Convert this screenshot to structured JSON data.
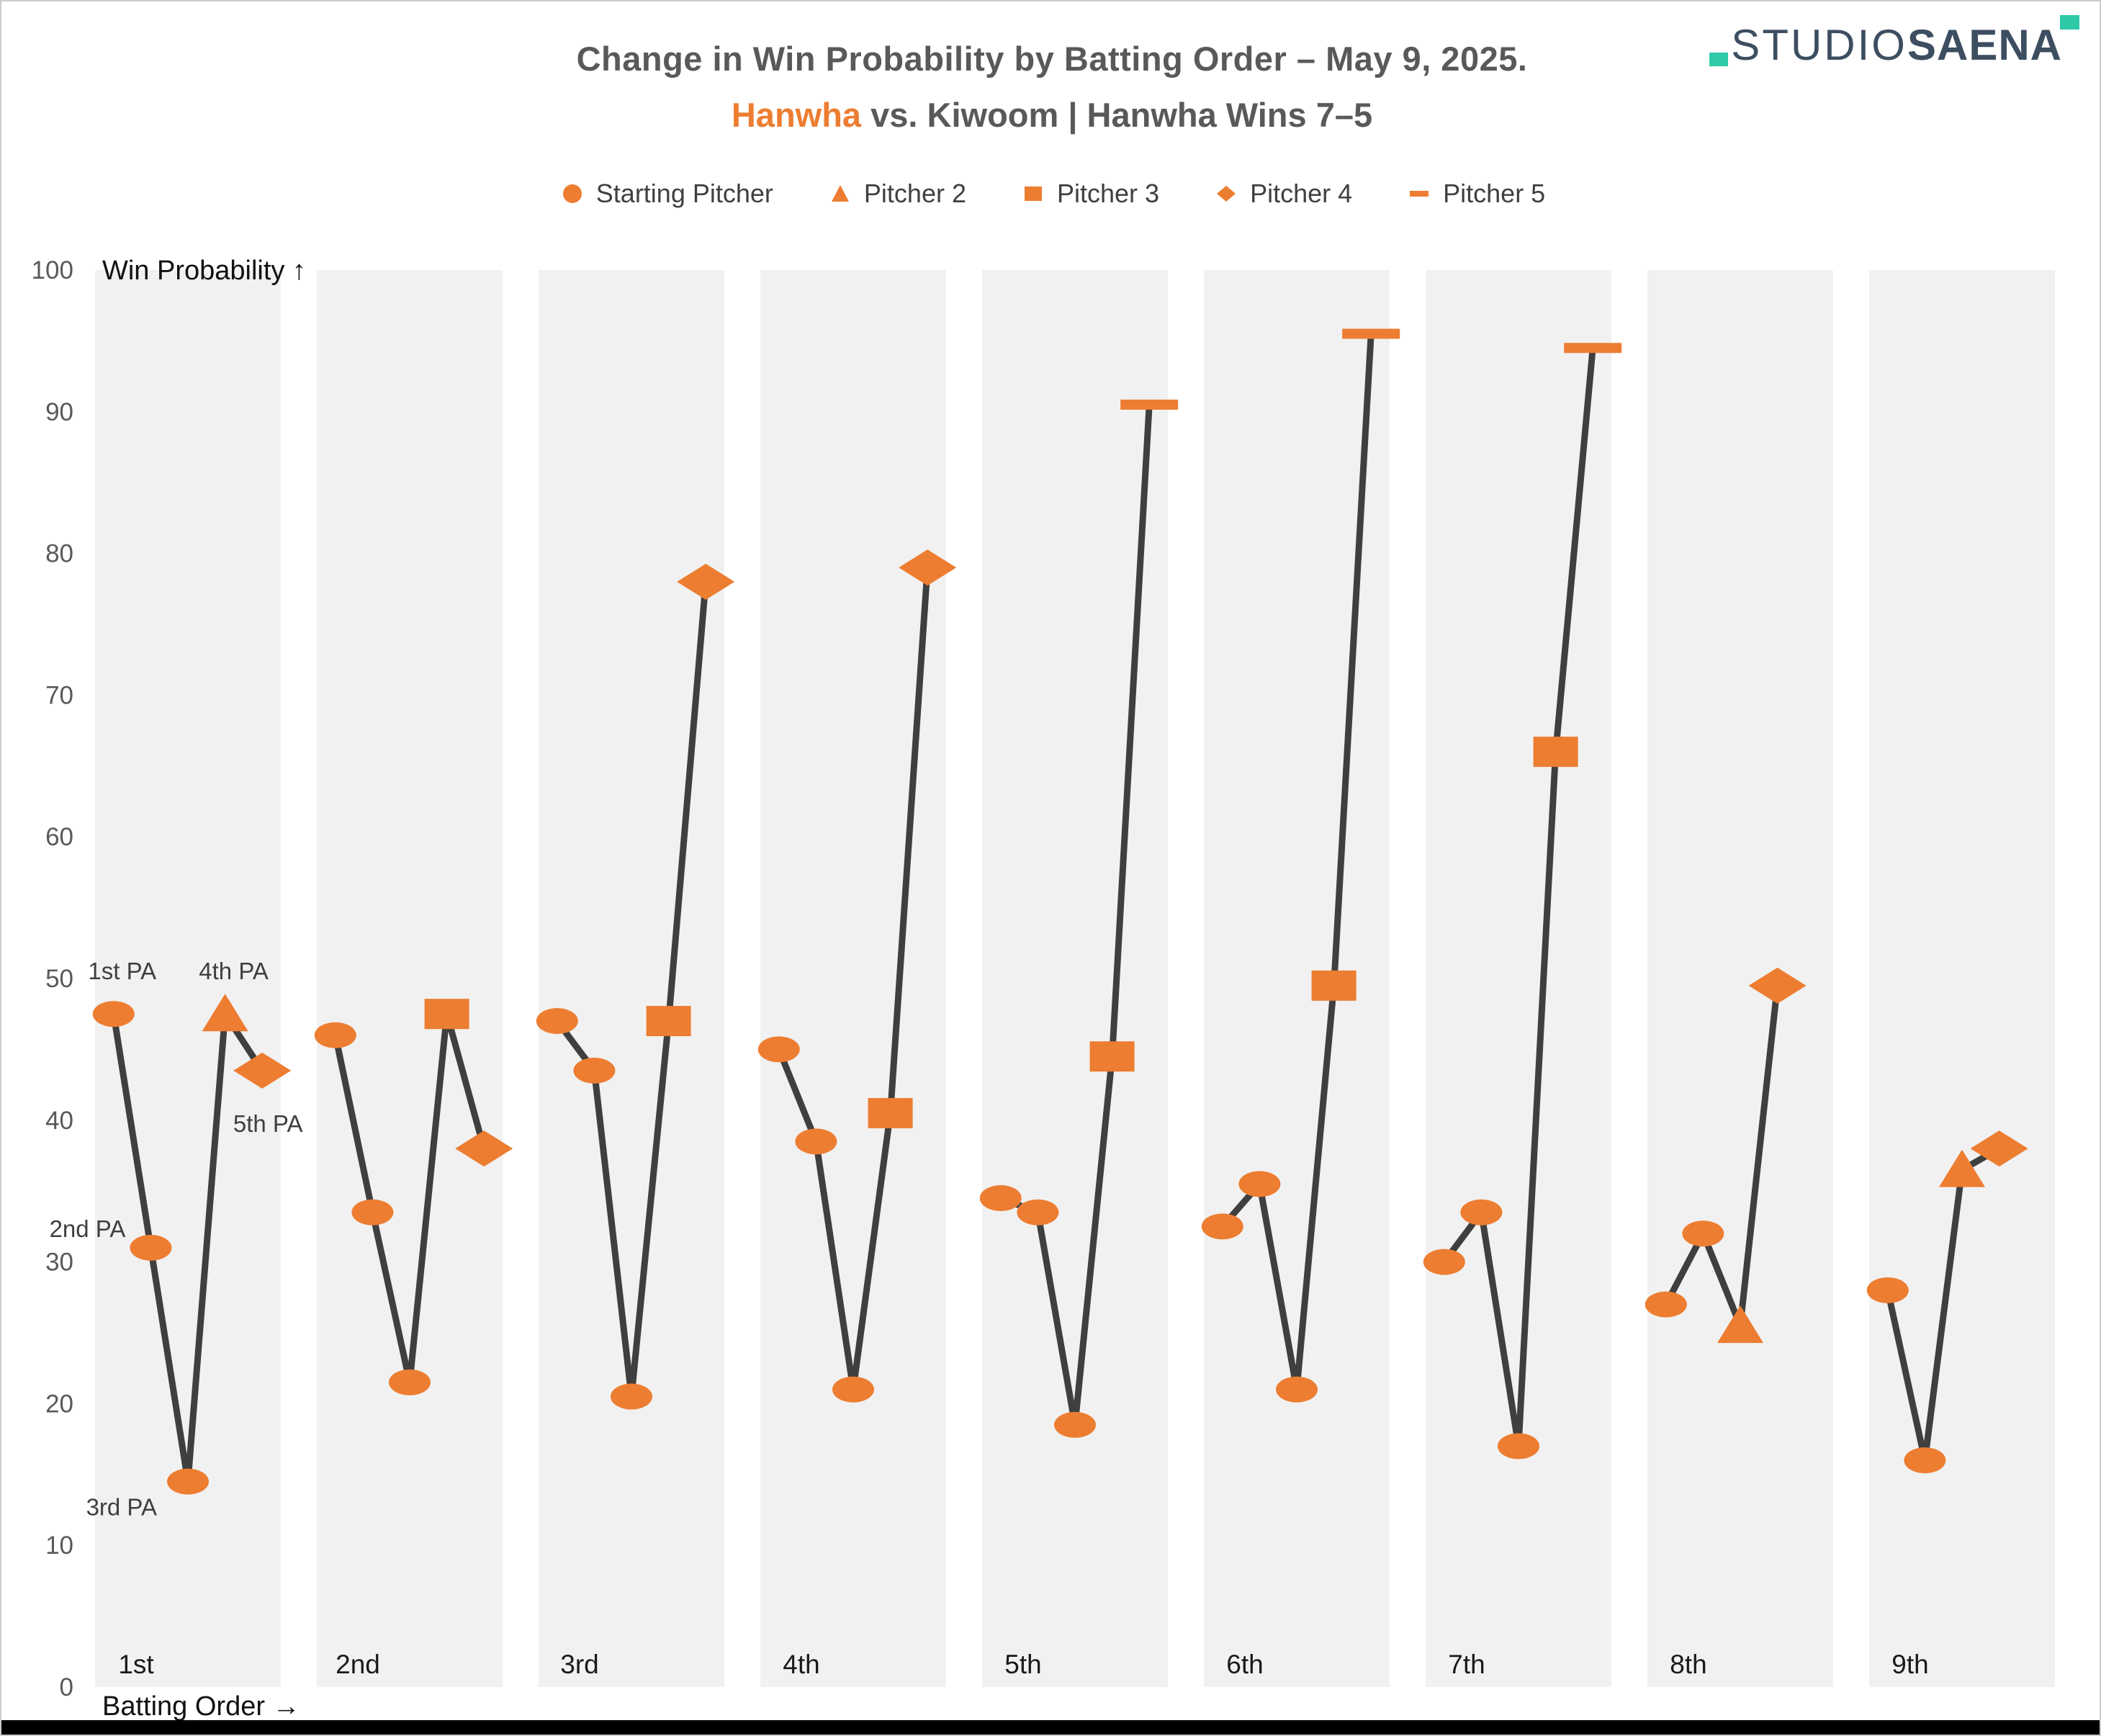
{
  "header": {
    "title": "Change in Win Probability by Batting Order – May 9, 2025.",
    "subtitle_team": "Hanwha",
    "subtitle_rest": " vs. Kiwoom | Hanwha Wins 7–5"
  },
  "logo": {
    "studio": "STUDIO",
    "saena": "SAENA"
  },
  "legend": [
    {
      "label": "Starting Pitcher",
      "marker": "circle"
    },
    {
      "label": "Pitcher 2",
      "marker": "triangle"
    },
    {
      "label": "Pitcher 3",
      "marker": "square"
    },
    {
      "label": "Pitcher 4",
      "marker": "diamond"
    },
    {
      "label": "Pitcher 5",
      "marker": "dash"
    }
  ],
  "colors": {
    "accent_orange": "#ED7D31",
    "line_gray": "#3F3F3F",
    "band_gray": "#F1F1F1",
    "tick_gray": "#595959",
    "text_black": "#1A1A1A",
    "annotation_gray": "#3F3F3F",
    "logo_navy": "#3D4E61",
    "logo_teal": "#2EC9A7",
    "bottom_bar_black": "#000000"
  },
  "chart_data": {
    "type": "line",
    "title": "Change in Win Probability by Batting Order – May 9, 2025.",
    "subtitle": "Hanwha vs. Kiwoom | Hanwha Wins 7–5",
    "ylabel": "Win Probability",
    "xlabel": "Batting Order",
    "ylabel_display": "Win Probability ↑",
    "xlabel_display": "Batting Order →",
    "ylim": [
      0,
      100
    ],
    "y_ticks": [
      0,
      10,
      20,
      30,
      40,
      50,
      60,
      70,
      80,
      90,
      100
    ],
    "grid": false,
    "legend_position": "top",
    "marker_legend": {
      "circle": "Starting Pitcher",
      "triangle": "Pitcher 2",
      "square": "Pitcher 3",
      "diamond": "Pitcher 4",
      "dash": "Pitcher 5"
    },
    "categories": [
      "1st",
      "2nd",
      "3rd",
      "4th",
      "5th",
      "6th",
      "7th",
      "8th",
      "9th"
    ],
    "panels": [
      {
        "category": "1st",
        "points": [
          {
            "pa": 1,
            "pitcher": "Starting Pitcher",
            "marker": "circle",
            "value": 47.5,
            "label": "1st PA",
            "label_pos": "above"
          },
          {
            "pa": 2,
            "pitcher": "Starting Pitcher",
            "marker": "circle",
            "value": 31,
            "label": "2nd PA",
            "label_pos": "left-up"
          },
          {
            "pa": 3,
            "pitcher": "Starting Pitcher",
            "marker": "circle",
            "value": 14.5,
            "label": "3rd PA",
            "label_pos": "left-down"
          },
          {
            "pa": 4,
            "pitcher": "Pitcher 2",
            "marker": "triangle",
            "value": 47.5,
            "label": "4th PA",
            "label_pos": "above"
          },
          {
            "pa": 5,
            "pitcher": "Pitcher 4",
            "marker": "diamond",
            "value": 43.5,
            "label": "5th PA",
            "label_pos": "below"
          }
        ]
      },
      {
        "category": "2nd",
        "points": [
          {
            "pa": 1,
            "pitcher": "Starting Pitcher",
            "marker": "circle",
            "value": 46
          },
          {
            "pa": 2,
            "pitcher": "Starting Pitcher",
            "marker": "circle",
            "value": 33.5
          },
          {
            "pa": 3,
            "pitcher": "Starting Pitcher",
            "marker": "circle",
            "value": 21.5
          },
          {
            "pa": 4,
            "pitcher": "Pitcher 3",
            "marker": "square",
            "value": 47.5
          },
          {
            "pa": 5,
            "pitcher": "Pitcher 4",
            "marker": "diamond",
            "value": 38
          }
        ]
      },
      {
        "category": "3rd",
        "points": [
          {
            "pa": 1,
            "pitcher": "Starting Pitcher",
            "marker": "circle",
            "value": 47
          },
          {
            "pa": 2,
            "pitcher": "Starting Pitcher",
            "marker": "circle",
            "value": 43.5
          },
          {
            "pa": 3,
            "pitcher": "Starting Pitcher",
            "marker": "circle",
            "value": 20.5
          },
          {
            "pa": 4,
            "pitcher": "Pitcher 3",
            "marker": "square",
            "value": 47
          },
          {
            "pa": 5,
            "pitcher": "Pitcher 4",
            "marker": "diamond",
            "value": 78
          }
        ]
      },
      {
        "category": "4th",
        "points": [
          {
            "pa": 1,
            "pitcher": "Starting Pitcher",
            "marker": "circle",
            "value": 45
          },
          {
            "pa": 2,
            "pitcher": "Starting Pitcher",
            "marker": "circle",
            "value": 38.5
          },
          {
            "pa": 3,
            "pitcher": "Starting Pitcher",
            "marker": "circle",
            "value": 21
          },
          {
            "pa": 4,
            "pitcher": "Pitcher 3",
            "marker": "square",
            "value": 40.5
          },
          {
            "pa": 5,
            "pitcher": "Pitcher 4",
            "marker": "diamond",
            "value": 79
          }
        ]
      },
      {
        "category": "5th",
        "points": [
          {
            "pa": 1,
            "pitcher": "Starting Pitcher",
            "marker": "circle",
            "value": 34.5
          },
          {
            "pa": 2,
            "pitcher": "Starting Pitcher",
            "marker": "circle",
            "value": 33.5
          },
          {
            "pa": 3,
            "pitcher": "Starting Pitcher",
            "marker": "circle",
            "value": 18.5
          },
          {
            "pa": 4,
            "pitcher": "Pitcher 3",
            "marker": "square",
            "value": 44.5
          },
          {
            "pa": 5,
            "pitcher": "Pitcher 5",
            "marker": "dash",
            "value": 90.5
          }
        ]
      },
      {
        "category": "6th",
        "points": [
          {
            "pa": 1,
            "pitcher": "Starting Pitcher",
            "marker": "circle",
            "value": 32.5
          },
          {
            "pa": 2,
            "pitcher": "Starting Pitcher",
            "marker": "circle",
            "value": 35.5
          },
          {
            "pa": 3,
            "pitcher": "Starting Pitcher",
            "marker": "circle",
            "value": 21
          },
          {
            "pa": 4,
            "pitcher": "Pitcher 3",
            "marker": "square",
            "value": 49.5
          },
          {
            "pa": 5,
            "pitcher": "Pitcher 5",
            "marker": "dash",
            "value": 95.5
          }
        ]
      },
      {
        "category": "7th",
        "points": [
          {
            "pa": 1,
            "pitcher": "Starting Pitcher",
            "marker": "circle",
            "value": 30
          },
          {
            "pa": 2,
            "pitcher": "Starting Pitcher",
            "marker": "circle",
            "value": 33.5
          },
          {
            "pa": 3,
            "pitcher": "Starting Pitcher",
            "marker": "circle",
            "value": 17
          },
          {
            "pa": 4,
            "pitcher": "Pitcher 3",
            "marker": "square",
            "value": 66
          },
          {
            "pa": 5,
            "pitcher": "Pitcher 5",
            "marker": "dash",
            "value": 94.5
          }
        ]
      },
      {
        "category": "8th",
        "points": [
          {
            "pa": 1,
            "pitcher": "Starting Pitcher",
            "marker": "circle",
            "value": 27
          },
          {
            "pa": 2,
            "pitcher": "Starting Pitcher",
            "marker": "circle",
            "value": 32
          },
          {
            "pa": 3,
            "pitcher": "Pitcher 2",
            "marker": "triangle",
            "value": 25.5
          },
          {
            "pa": 4,
            "pitcher": "Pitcher 4",
            "marker": "diamond",
            "value": 49.5
          }
        ]
      },
      {
        "category": "9th",
        "points": [
          {
            "pa": 1,
            "pitcher": "Starting Pitcher",
            "marker": "circle",
            "value": 28
          },
          {
            "pa": 2,
            "pitcher": "Starting Pitcher",
            "marker": "circle",
            "value": 16
          },
          {
            "pa": 3,
            "pitcher": "Pitcher 2",
            "marker": "triangle",
            "value": 36.5
          },
          {
            "pa": 4,
            "pitcher": "Pitcher 4",
            "marker": "diamond",
            "value": 38
          }
        ]
      }
    ]
  }
}
